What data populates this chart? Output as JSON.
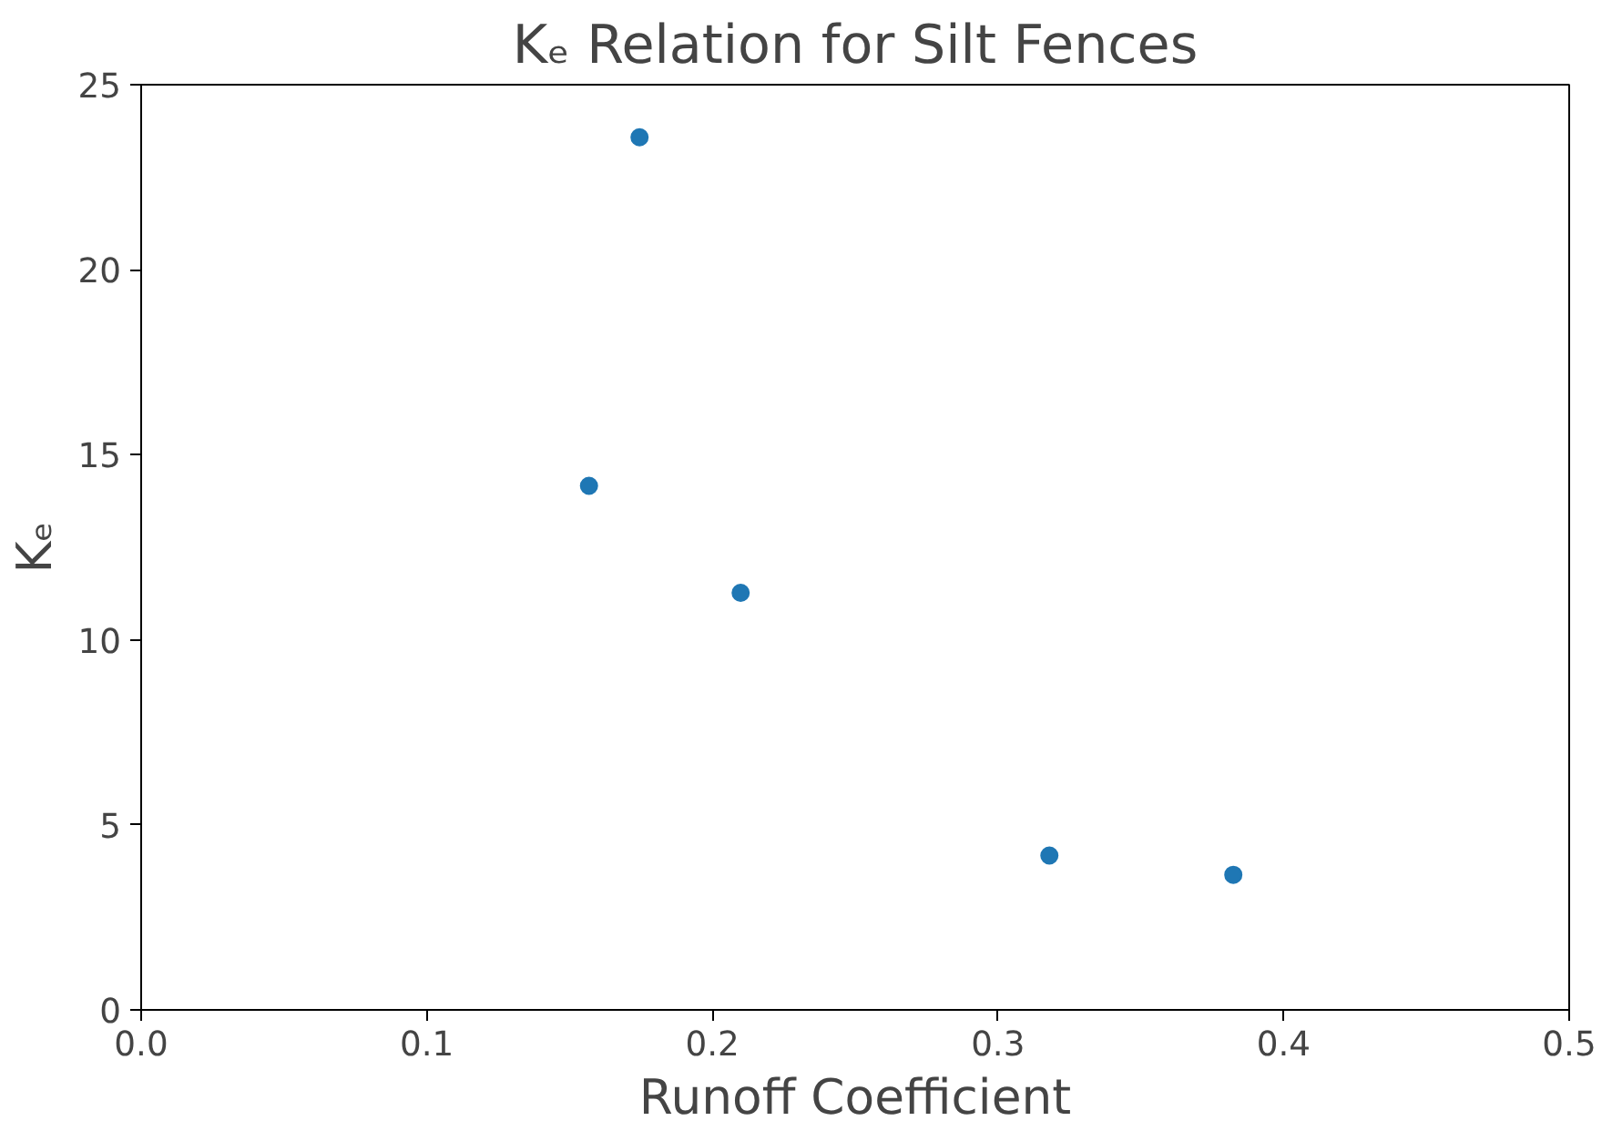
{
  "chart_data": {
    "type": "scatter",
    "title": "Kₑ Relation for Silt Fences",
    "xlabel": "Runoff Coefficient",
    "ylabel": "Kₑ",
    "x": [
      0.1745,
      0.1568,
      0.2099,
      0.318,
      0.3824
    ],
    "series": [
      {
        "color": "#1f77b4",
        "values": [
          23.58,
          14.16,
          11.27,
          4.17,
          3.65
        ]
      }
    ],
    "xlim": [
      0,
      0.5
    ],
    "ylim": [
      0,
      25
    ],
    "xticks": [
      {
        "value": 0,
        "label": "0.0"
      },
      0.1,
      0.2,
      0.3,
      0.4,
      0.5
    ],
    "yticks": [
      0,
      5,
      10,
      15,
      20,
      25
    ],
    "grid": false,
    "marker": "circle"
  }
}
